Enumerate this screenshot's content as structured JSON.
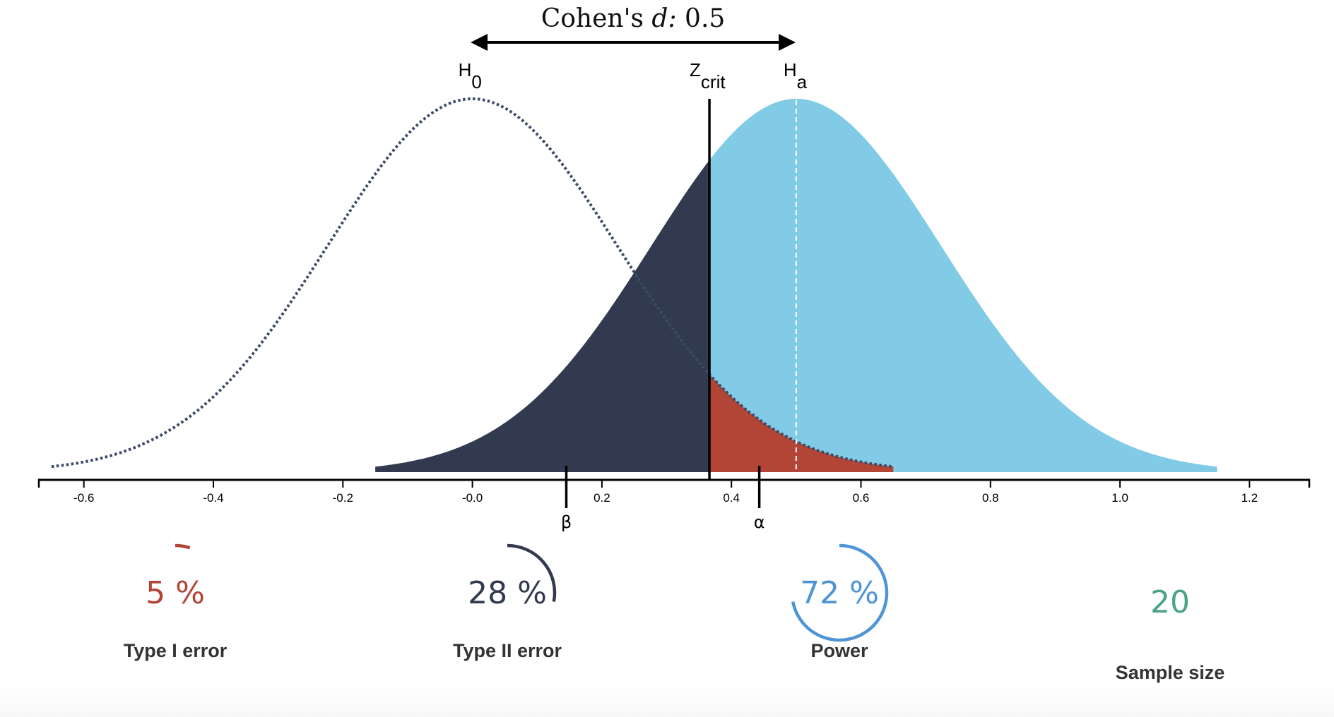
{
  "title": {
    "prefix": "Cohen's ",
    "italic": "d:",
    "value": " 0.5"
  },
  "labels": {
    "h0_main": "H",
    "h0_sub": "0",
    "zcrit_main": "Z",
    "zcrit_sub": "crit",
    "ha_main": "H",
    "ha_sub": "a",
    "beta": "β",
    "alpha": "α"
  },
  "colors": {
    "null_curve": "#3b4a66",
    "type2_fill": "#323a4f",
    "power_fill": "#81cbe6",
    "type1_fill": "#b34536",
    "type1_text": "#b34536",
    "type2_text": "#323a4f",
    "power_text": "#4f94d4",
    "sample_text": "#4aa386",
    "label_text": "#333333"
  },
  "stats": {
    "type1": {
      "value": "5 %",
      "label": "Type I error",
      "fraction": 0.05
    },
    "type2": {
      "value": "28 %",
      "label": "Type II error",
      "fraction": 0.28
    },
    "power": {
      "value": "72 %",
      "label": "Power",
      "fraction": 0.72
    },
    "sample": {
      "value": "20",
      "label": "Sample size"
    }
  },
  "chart_data": {
    "type": "area",
    "title": "Cohen's d: 0.5",
    "xlabel": "",
    "ylabel": "",
    "xlim": [
      -0.67,
      1.32
    ],
    "x_ticks": [
      -0.6,
      -0.4,
      -0.2,
      0.0,
      0.2,
      0.4,
      0.6,
      0.8,
      1.0,
      1.2
    ],
    "x_tick_labels": [
      "-0.6",
      "-0.4",
      "-0.2",
      "-0.0",
      "0.2",
      "0.4",
      "0.6",
      "0.8",
      "1.0",
      "1.2"
    ],
    "grid": false,
    "legend": "none",
    "series": [
      {
        "name": "H0 (null distribution)",
        "style": "dotted line",
        "mean": 0.0,
        "sd": 0.2236,
        "range": [
          -0.65,
          0.65
        ]
      },
      {
        "name": "Ha (alternative distribution)",
        "style": "filled area",
        "mean": 0.5,
        "sd": 0.2236,
        "range": [
          -0.15,
          1.15
        ]
      }
    ],
    "regions": [
      {
        "name": "Type II error (β)",
        "from": -0.15,
        "to": 0.366,
        "under": "Ha"
      },
      {
        "name": "Power",
        "from": 0.366,
        "to": 1.15,
        "under": "Ha"
      },
      {
        "name": "Type I error (α)",
        "from": 0.366,
        "to": 0.65,
        "under": "H0"
      }
    ],
    "annotations": {
      "cohens_d": 0.5,
      "z_crit": 0.366,
      "beta_marker_x": 0.145,
      "alpha_marker_x": 0.443,
      "alpha": 0.05,
      "beta": 0.28,
      "power": 0.72,
      "sample_size": 20
    }
  }
}
